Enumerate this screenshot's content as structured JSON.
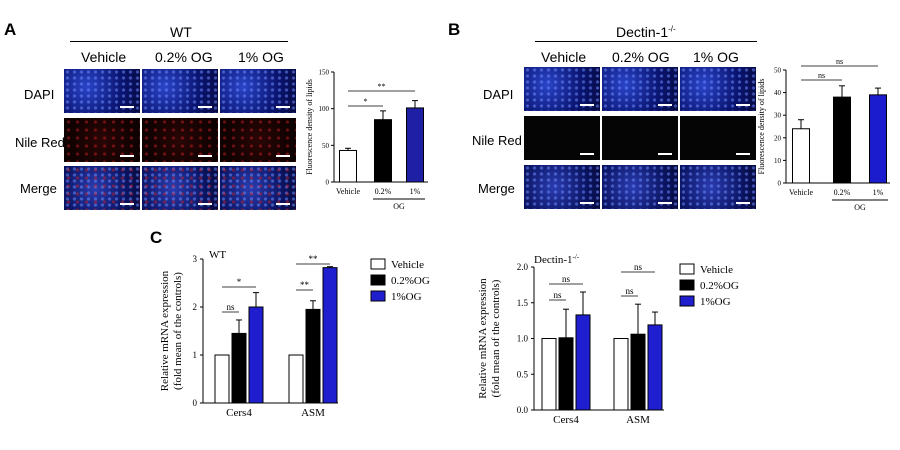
{
  "panels": {
    "A": {
      "letter": "A",
      "group": "WT",
      "columns": [
        "Vehicle",
        "0.2% OG",
        "1% OG"
      ],
      "rows": [
        "DAPI",
        "Nile Red",
        "Merge"
      ]
    },
    "B": {
      "letter": "B",
      "group": "Dectin-1",
      "group_sup": "-/-",
      "columns": [
        "Vehicle",
        "0.2% OG",
        "1% OG"
      ],
      "rows": [
        "DAPI",
        "Nile Red",
        "Merge"
      ]
    },
    "C": {
      "letter": "C"
    }
  },
  "colors": {
    "vehicle": "#ffffff",
    "og02": "#000000",
    "og1_wt": "#1f1fa6",
    "og1_dec": "#1c1ccf",
    "dectin_02_c": "#1818e0"
  },
  "chart_data": [
    {
      "id": "A-bar",
      "type": "bar",
      "categories": [
        "Vehicle",
        "0.2%",
        "1%"
      ],
      "group_label": "OG",
      "values": [
        43,
        85,
        101
      ],
      "errors": [
        3,
        12,
        10
      ],
      "bar_colors": [
        "#ffffff",
        "#000000",
        "#1f1fa6"
      ],
      "ylabel": "Fluorescence density of lipids",
      "ylim": [
        0,
        150
      ],
      "yticks": [
        0,
        50,
        100,
        150
      ],
      "significance": [
        {
          "from": 0,
          "to": 1,
          "label": "*"
        },
        {
          "from": 0,
          "to": 2,
          "label": "**"
        }
      ]
    },
    {
      "id": "B-bar",
      "type": "bar",
      "categories": [
        "Vehicle",
        "0.2%",
        "1%"
      ],
      "group_label": "OG",
      "values": [
        24,
        38,
        39
      ],
      "errors": [
        4,
        5,
        3
      ],
      "bar_colors": [
        "#ffffff",
        "#000000",
        "#1c1ccf"
      ],
      "ylabel": "Fluorescence density of lipids",
      "ylim": [
        0,
        50
      ],
      "yticks": [
        0,
        10,
        20,
        30,
        40,
        50
      ],
      "significance": [
        {
          "from": 0,
          "to": 1,
          "label": "ns"
        },
        {
          "from": 0,
          "to": 2,
          "label": "ns"
        }
      ]
    },
    {
      "id": "C-wt",
      "type": "bar",
      "title": "WT",
      "categories": [
        "Cers4",
        "ASM"
      ],
      "series": [
        {
          "name": "Vehicle",
          "values": [
            1.0,
            1.0
          ],
          "errors": [
            0,
            0
          ],
          "color": "#ffffff"
        },
        {
          "name": "0.2%OG",
          "values": [
            1.45,
            1.95
          ],
          "errors": [
            0.28,
            0.18
          ],
          "color": "#000000"
        },
        {
          "name": "1%OG",
          "values": [
            2.0,
            2.82
          ],
          "errors": [
            0.3,
            0.02
          ],
          "color": "#1f1fd0"
        }
      ],
      "ylabel": "Relative mRNA expression",
      "ylabel2": "(fold mean of the controls)",
      "ylim": [
        0,
        3
      ],
      "yticks": [
        0,
        1,
        2,
        3
      ],
      "significance": [
        {
          "cat": 0,
          "from": 0,
          "to": 1,
          "label": "ns"
        },
        {
          "cat": 0,
          "from": 0,
          "to": 2,
          "label": "*"
        },
        {
          "cat": 1,
          "from": 0,
          "to": 1,
          "label": "**"
        },
        {
          "cat": 1,
          "from": 0,
          "to": 2,
          "label": "**"
        }
      ]
    },
    {
      "id": "C-dectin",
      "type": "bar",
      "title": "Dectin-1",
      "title_sup": "-/-",
      "categories": [
        "Cers4",
        "ASM"
      ],
      "series": [
        {
          "name": "Vehicle",
          "values": [
            1.0,
            1.0
          ],
          "errors": [
            0,
            0
          ],
          "color": "#ffffff"
        },
        {
          "name": "0.2%OG",
          "values": [
            1.01,
            1.06
          ],
          "errors": [
            0.4,
            0.42
          ],
          "color": "#000000"
        },
        {
          "name": "1%OG",
          "values": [
            1.33,
            1.19
          ],
          "errors": [
            0.32,
            0.18
          ],
          "color": "#1f1fd0"
        }
      ],
      "ylabel": "Relative mRNA expression",
      "ylabel2": "(fold mean of the controls)",
      "ylim": [
        0,
        2
      ],
      "yticks": [
        "0.0",
        "0.5",
        "1.0",
        "1.5",
        "2.0"
      ],
      "significance": [
        {
          "cat": 0,
          "from": 0,
          "to": 1,
          "label": "ns"
        },
        {
          "cat": 0,
          "from": 0,
          "to": 2,
          "label": "ns"
        },
        {
          "cat": 1,
          "from": 0,
          "to": 1,
          "label": "ns"
        },
        {
          "cat": 1,
          "from": 0,
          "to": 2,
          "label": "ns"
        }
      ],
      "legend": [
        "Vehicle",
        "0.2%OG",
        "1%OG"
      ]
    }
  ]
}
